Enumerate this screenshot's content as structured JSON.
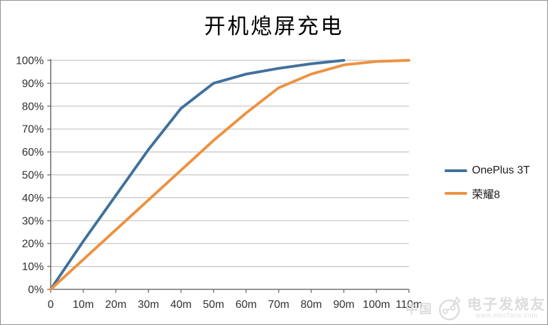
{
  "chart_data": {
    "type": "line",
    "title": "开机熄屏充电",
    "categories": [
      "0",
      "10m",
      "20m",
      "30m",
      "40m",
      "50m",
      "60m",
      "70m",
      "80m",
      "90m",
      "100m",
      "110m"
    ],
    "xlabel": "",
    "ylabel": "",
    "ylim": [
      0,
      100
    ],
    "grid": true,
    "legend_position": "right",
    "yticks": [
      {
        "value": 0,
        "label": "0%"
      },
      {
        "value": 10,
        "label": "10%"
      },
      {
        "value": 20,
        "label": "20%"
      },
      {
        "value": 30,
        "label": "30%"
      },
      {
        "value": 40,
        "label": "40%"
      },
      {
        "value": 50,
        "label": "50%"
      },
      {
        "value": 60,
        "label": "60%"
      },
      {
        "value": 70,
        "label": "70%"
      },
      {
        "value": 80,
        "label": "80%"
      },
      {
        "value": 90,
        "label": "90%"
      },
      {
        "value": 100,
        "label": "100%"
      }
    ],
    "series": [
      {
        "id": "oneplus-3t",
        "name": "OnePlus 3T",
        "color": "#41719C",
        "values": [
          0,
          21,
          41,
          61,
          79,
          90,
          94,
          96.5,
          98.5,
          100,
          null,
          null
        ]
      },
      {
        "id": "honor-8",
        "name": "荣耀8",
        "color": "#EC9242",
        "values": [
          0,
          13,
          26,
          39,
          52,
          65,
          77,
          88,
          94,
          98,
          99.5,
          100
        ]
      }
    ],
    "colors": {
      "gridline": "#C3C3C3",
      "axis": "#6F6F6F",
      "tick_label": "#303030"
    }
  },
  "watermark": {
    "prefix": "中国",
    "brand": "电子发烧友",
    "url": "www.elecfans.com"
  }
}
